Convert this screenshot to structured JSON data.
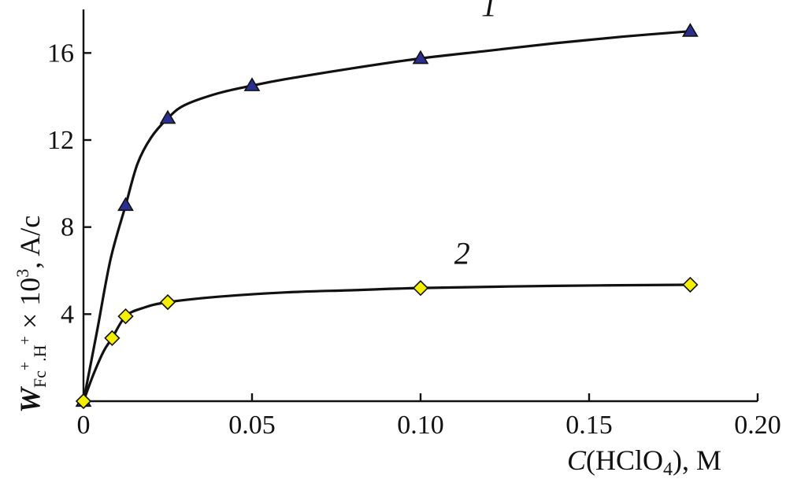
{
  "chart_data": {
    "type": "scatter",
    "xlabel": {
      "main_italic": "C",
      "main_rest": "(HClO",
      "sub": "4",
      "tail": "), M"
    },
    "ylabel": {
      "main": "W",
      "sub1": "Fc",
      "sup1": "+",
      "sub2": ".H",
      "sup2": "+",
      "times": " × 10",
      "exp": "3",
      "units": ", A/c"
    },
    "xlim": [
      0,
      0.2
    ],
    "ylim": [
      0,
      18
    ],
    "x_ticks": [
      0,
      0.05,
      0.1,
      0.15,
      0.2
    ],
    "x_tick_labels": [
      "0",
      "0.05",
      "0.10",
      "0.15",
      "0.20"
    ],
    "y_ticks": [
      4,
      8,
      12,
      16
    ],
    "y_tick_labels": [
      "4",
      "8",
      "12",
      "16"
    ],
    "grid": false,
    "series": [
      {
        "name": "1",
        "marker": "triangle",
        "marker_color": "#2b2f8f",
        "x": [
          0.0,
          0.0125,
          0.025,
          0.05,
          0.1,
          0.18
        ],
        "y": [
          0.0,
          9.0,
          13.0,
          14.5,
          15.75,
          17.0
        ],
        "curve_x": [
          0.0,
          0.004,
          0.008,
          0.0125,
          0.016,
          0.02,
          0.025,
          0.03,
          0.04,
          0.05,
          0.06,
          0.08,
          0.1,
          0.12,
          0.14,
          0.16,
          0.18
        ],
        "curve_y": [
          0.0,
          3.2,
          6.5,
          9.0,
          10.9,
          12.1,
          13.0,
          13.6,
          14.15,
          14.5,
          14.8,
          15.3,
          15.75,
          16.1,
          16.45,
          16.75,
          17.0
        ],
        "label_x": 0.118,
        "label_y": 17.7
      },
      {
        "name": "2",
        "marker": "diamond",
        "marker_color": "#f5f000",
        "x": [
          0.0,
          0.0085,
          0.0125,
          0.025,
          0.1,
          0.18
        ],
        "y": [
          0.0,
          2.9,
          3.9,
          4.55,
          5.2,
          5.35
        ],
        "curve_x": [
          0.0,
          0.003,
          0.006,
          0.0085,
          0.0125,
          0.018,
          0.025,
          0.04,
          0.06,
          0.08,
          0.1,
          0.14,
          0.18
        ],
        "curve_y": [
          0.0,
          1.25,
          2.3,
          2.9,
          3.9,
          4.3,
          4.55,
          4.8,
          5.0,
          5.1,
          5.2,
          5.3,
          5.35
        ],
        "label_x": 0.11,
        "label_y": 6.3
      }
    ]
  }
}
